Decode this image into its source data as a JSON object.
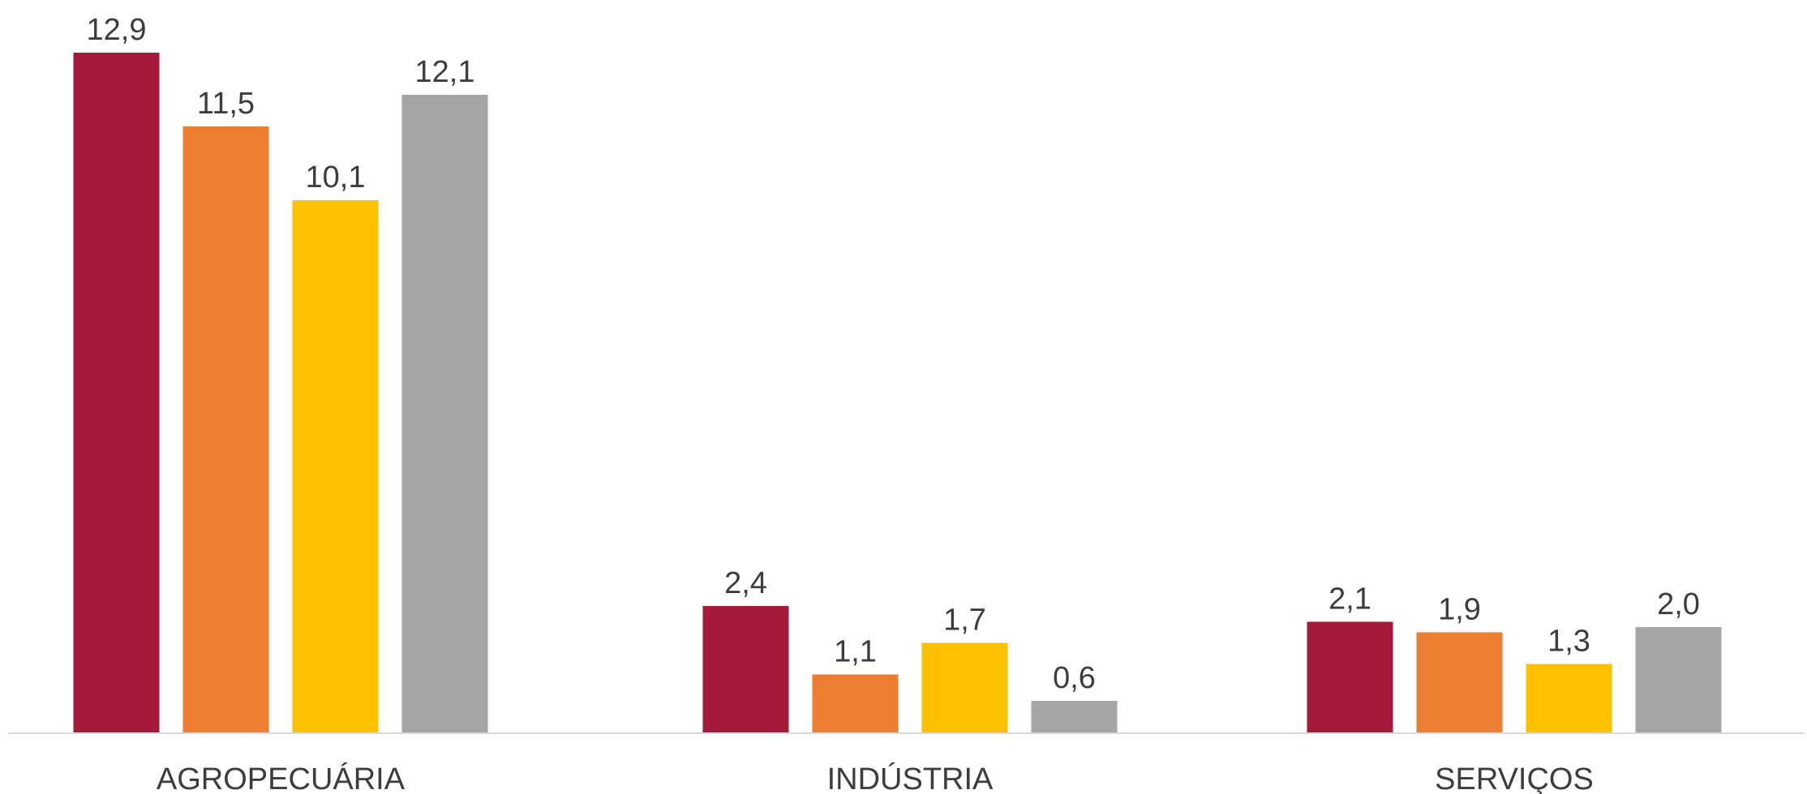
{
  "chart_data": {
    "type": "bar",
    "categories": [
      "AGROPECUÁRIA",
      "INDÚSTRIA",
      "SERVIÇOS"
    ],
    "series": [
      {
        "values": [
          12.9,
          2.4,
          2.1
        ],
        "labels": [
          "12,9",
          "2,4",
          "2,1"
        ],
        "color": "#A51A3B"
      },
      {
        "values": [
          11.5,
          1.1,
          1.9
        ],
        "labels": [
          "11,5",
          "1,1",
          "1,9"
        ],
        "color": "#ED7D31"
      },
      {
        "values": [
          10.1,
          1.7,
          1.3
        ],
        "labels": [
          "10,1",
          "1,7",
          "1,3"
        ],
        "color": "#FFC000"
      },
      {
        "values": [
          12.1,
          0.6,
          2.0
        ],
        "labels": [
          "12,1",
          "0,6",
          "2,0"
        ],
        "color": "#A5A5A5"
      }
    ],
    "ylim": [
      0,
      12.9
    ],
    "axis_color": "#d9d9d9",
    "grid": false,
    "legend": "none"
  }
}
